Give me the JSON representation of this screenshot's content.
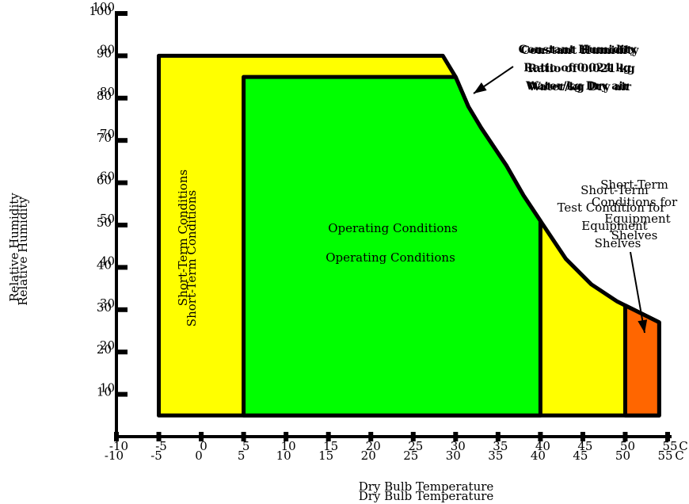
{
  "chart_data": {
    "type": "area",
    "title": "",
    "xlabel": "Dry Bulb Temperature",
    "ylabel": "Relative Humidity",
    "x_unit_label": "C",
    "xlim": [
      -10,
      55
    ],
    "ylim": [
      0,
      100
    ],
    "x_ticks": [
      -10,
      -5,
      0,
      5,
      10,
      15,
      20,
      25,
      30,
      35,
      40,
      45,
      50,
      55
    ],
    "y_ticks": [
      10,
      20,
      30,
      40,
      50,
      60,
      70,
      80,
      90,
      100
    ],
    "regions": [
      {
        "name": "Short-Term Conditions",
        "color": "#ffff00",
        "polygon": [
          [
            -5,
            5
          ],
          [
            -5,
            90
          ],
          [
            28.5,
            90
          ],
          [
            30,
            85
          ],
          [
            31.5,
            78
          ],
          [
            33,
            73
          ],
          [
            36,
            64
          ],
          [
            38,
            57
          ],
          [
            40,
            51
          ],
          [
            43,
            42
          ],
          [
            46,
            36
          ],
          [
            49,
            32
          ],
          [
            50,
            31
          ],
          [
            54,
            27
          ],
          [
            54,
            5
          ]
        ]
      },
      {
        "name": "Operating Conditions",
        "color": "#00ff00",
        "polygon": [
          [
            5,
            5
          ],
          [
            5,
            85
          ],
          [
            30,
            85
          ],
          [
            31.5,
            78
          ],
          [
            33,
            73
          ],
          [
            36,
            64
          ],
          [
            38,
            57
          ],
          [
            40,
            51
          ],
          [
            40,
            5
          ]
        ]
      },
      {
        "name": "Short-Term Test Condition for Equipment Shelves",
        "color": "#ff6600",
        "polygon": [
          [
            50,
            5
          ],
          [
            50,
            31
          ],
          [
            54,
            27
          ],
          [
            54,
            5
          ]
        ]
      }
    ],
    "labels": {
      "short_term": "Short-Term Conditions",
      "operating": "Operating Conditions",
      "shelves_a": [
        "Short-Term",
        "Test Condition for",
        "Equipment",
        "Shelves"
      ],
      "shelves_b": [
        "Short-Term",
        "Conditions for",
        "Equipment",
        "Shelves"
      ],
      "humidity_a": [
        "Constant Humidity",
        "Ratio of 0.024 kg",
        "Water/kg Dry air"
      ],
      "humidity_b": [
        "Constant Humidity",
        "Ratio of 0.021 kg",
        "Water/kg Dry air"
      ]
    },
    "colors": {
      "yellow": "#ffff00",
      "green": "#00ff00",
      "orange": "#ff6600",
      "line": "#000000"
    }
  }
}
